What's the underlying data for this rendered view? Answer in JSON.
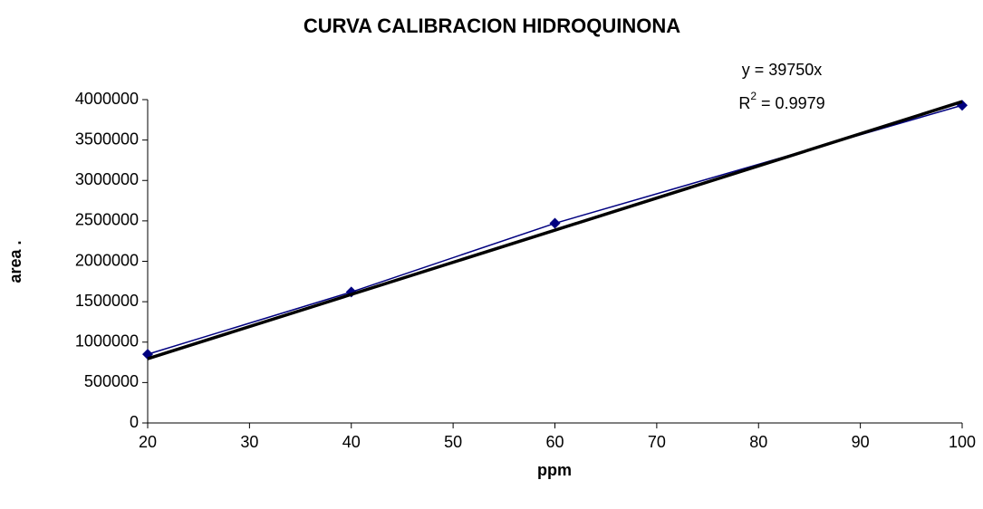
{
  "chart_data": {
    "type": "scatter",
    "title": "CURVA CALIBRACION HIDROQUINONA",
    "x_label": "ppm",
    "y_label": "area .",
    "annotations": {
      "equation": "y = 39750x",
      "r2": [
        "R",
        "2",
        " = 0.9979"
      ]
    },
    "series": [
      {
        "x": [
          20,
          40,
          60,
          100
        ],
        "values": [
          850000,
          1620000,
          2470000,
          3930000
        ],
        "color": "#000080",
        "marker": "diamond"
      },
      {
        "x": [
          20,
          100
        ],
        "values": [
          795000,
          3975000
        ],
        "color": "#000000",
        "marker": "none"
      }
    ],
    "xlim": [
      20,
      100
    ],
    "xticks": [
      20,
      30,
      40,
      50,
      60,
      70,
      80,
      90,
      100
    ],
    "ylim": [
      0,
      4000000
    ],
    "yticks": [
      0,
      500000,
      1000000,
      1500000,
      2000000,
      2500000,
      3000000,
      3500000,
      4000000
    ],
    "grid": false
  }
}
